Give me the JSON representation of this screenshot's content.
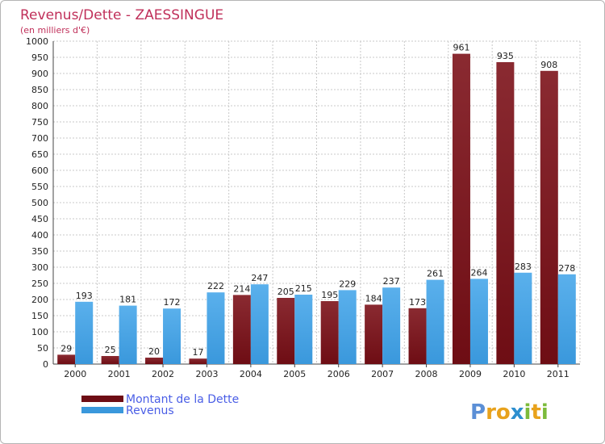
{
  "chart_data": {
    "type": "bar",
    "title": "Revenus/Dette - ZAESSINGUE",
    "subtitle": "(en milliers d'€)",
    "categories": [
      "2000",
      "2001",
      "2002",
      "2003",
      "2004",
      "2005",
      "2006",
      "2007",
      "2008",
      "2009",
      "2010",
      "2011"
    ],
    "series": [
      {
        "name": "Montant de la Dette",
        "color": "#6e0d14",
        "values": [
          29,
          25,
          20,
          17,
          214,
          205,
          195,
          184,
          173,
          961,
          935,
          908
        ]
      },
      {
        "name": "Revenus",
        "color": "#3a98dc",
        "values": [
          193,
          181,
          172,
          222,
          247,
          215,
          229,
          237,
          261,
          264,
          283,
          278
        ]
      }
    ],
    "ylim": [
      0,
      1000
    ],
    "ytick_step": 50,
    "grid": true,
    "legend_position": "bottom-left"
  },
  "logo": {
    "text": "Proxiti",
    "letters": [
      {
        "ch": "P",
        "color": "#5b8fd6"
      },
      {
        "ch": "r",
        "color": "#e8a21c"
      },
      {
        "ch": "o",
        "color": "#e8a21c"
      },
      {
        "ch": "x",
        "color": "#2d8fcf"
      },
      {
        "ch": "i",
        "color": "#7cbb3b"
      },
      {
        "ch": "t",
        "color": "#e8a21c"
      },
      {
        "ch": "i",
        "color": "#7cbb3b"
      }
    ]
  }
}
